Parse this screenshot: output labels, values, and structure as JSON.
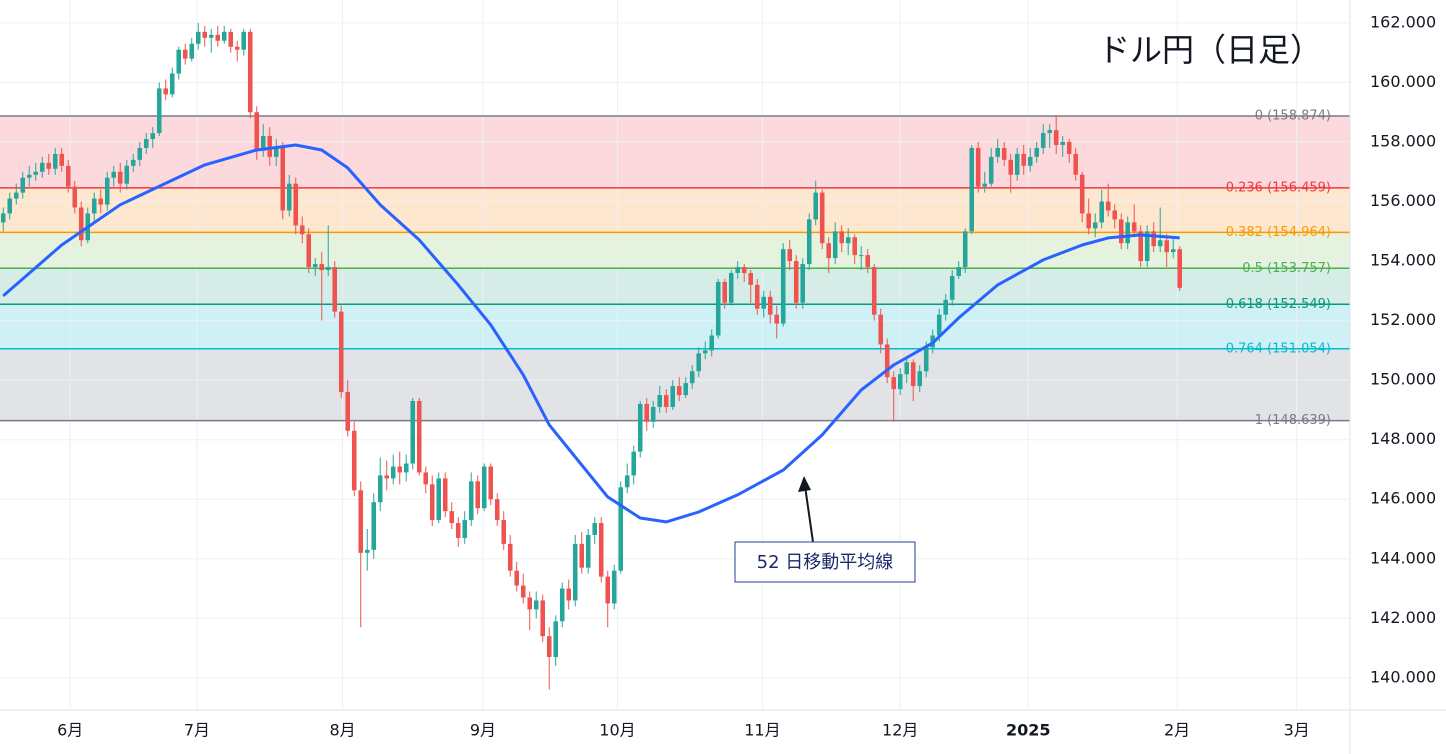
{
  "chart_data": {
    "type": "candlestick",
    "title": "ドル円（日足）",
    "up_color": "#26a69a",
    "down_color": "#ef5350",
    "grid": true,
    "xlim": [
      -0.5,
      207.2
    ],
    "ylim": [
      138.92,
      162.77
    ],
    "xticks": [
      {
        "value": 10.3,
        "label": "6月"
      },
      {
        "value": 29.8,
        "label": "7月"
      },
      {
        "value": 52.2,
        "label": "8月"
      },
      {
        "value": 73.8,
        "label": "9月"
      },
      {
        "value": 94.5,
        "label": "10月"
      },
      {
        "value": 116.8,
        "label": "11月"
      },
      {
        "value": 138,
        "label": "12月"
      },
      {
        "value": 157.7,
        "label": "2025"
      },
      {
        "value": 180.6,
        "label": "2月"
      },
      {
        "value": 199,
        "label": "3月"
      }
    ],
    "yticks": [
      {
        "value": 140,
        "label": "140.000"
      },
      {
        "value": 142,
        "label": "142.000"
      },
      {
        "value": 144,
        "label": "144.000"
      },
      {
        "value": 146,
        "label": "146.000"
      },
      {
        "value": 148,
        "label": "148.000"
      },
      {
        "value": 150,
        "label": "150.000"
      },
      {
        "value": 152,
        "label": "152.000"
      },
      {
        "value": 154,
        "label": "154.000"
      },
      {
        "value": 156,
        "label": "156.000"
      },
      {
        "value": 158,
        "label": "158.000"
      },
      {
        "value": 160,
        "label": "160.000"
      },
      {
        "value": 162,
        "label": "162.000"
      }
    ],
    "fib_levels": [
      {
        "label": "0 (158.874)",
        "price": 158.874,
        "color": "#787b86",
        "fill": "#fcd9dc"
      },
      {
        "label": "0.236 (156.459)",
        "price": 156.459,
        "color": "#f23645",
        "fill": "#fde7cf"
      },
      {
        "label": "0.382 (154.964)",
        "price": 154.964,
        "color": "#ff9800",
        "fill": "#e5f2dd"
      },
      {
        "label": "0.5 (153.757)",
        "price": 153.757,
        "color": "#4caf50",
        "fill": "#d5ede6"
      },
      {
        "label": "0.618 (152.549)",
        "price": 152.549,
        "color": "#089981",
        "fill": "#cff0f4"
      },
      {
        "label": "0.764 (151.054)",
        "price": 151.054,
        "color": "#00bcd4",
        "fill": "#e2e3e6"
      },
      {
        "label": "1 (148.639)",
        "price": 148.639,
        "color": "#787b86"
      }
    ],
    "moving_average": {
      "color": "#2962ff",
      "x": [
        0,
        9,
        18,
        31,
        39,
        45,
        49,
        53,
        58,
        64,
        70,
        75,
        80,
        84,
        89,
        93,
        98,
        102,
        107,
        113,
        120,
        126,
        132,
        137,
        143,
        147,
        153,
        160,
        166,
        170,
        175,
        181
      ],
      "values": [
        152.83,
        154.54,
        155.89,
        157.23,
        157.73,
        157.9,
        157.73,
        157.13,
        155.89,
        154.71,
        153.2,
        151.86,
        150.18,
        148.5,
        147.15,
        146.08,
        145.37,
        145.24,
        145.57,
        146.15,
        146.98,
        148.16,
        149.67,
        150.51,
        151.25,
        152.09,
        153.2,
        154.04,
        154.54,
        154.78,
        154.88,
        154.78
      ]
    },
    "annotation": {
      "text": "52 日移動平均線"
    },
    "ohlc": [
      [
        155.3,
        155.8,
        155.0,
        155.6
      ],
      [
        155.6,
        156.3,
        155.4,
        156.1
      ],
      [
        156.1,
        156.6,
        155.9,
        156.3
      ],
      [
        156.3,
        157.0,
        156.1,
        156.8
      ],
      [
        156.8,
        157.2,
        156.5,
        156.9
      ],
      [
        156.9,
        157.3,
        156.7,
        157.0
      ],
      [
        157.0,
        157.5,
        156.8,
        157.3
      ],
      [
        157.3,
        157.6,
        156.9,
        157.1
      ],
      [
        157.1,
        157.8,
        156.9,
        157.6
      ],
      [
        157.6,
        157.8,
        157.0,
        157.2
      ],
      [
        157.2,
        157.4,
        156.3,
        156.5
      ],
      [
        156.5,
        156.7,
        155.6,
        155.8
      ],
      [
        155.8,
        156.0,
        154.5,
        154.7
      ],
      [
        154.7,
        155.8,
        154.6,
        155.6
      ],
      [
        155.6,
        156.3,
        155.3,
        156.1
      ],
      [
        156.1,
        156.4,
        155.6,
        155.9
      ],
      [
        155.9,
        157.0,
        155.7,
        156.8
      ],
      [
        156.8,
        157.2,
        156.5,
        157.0
      ],
      [
        157.0,
        157.3,
        156.3,
        156.6
      ],
      [
        156.6,
        157.4,
        156.4,
        157.2
      ],
      [
        157.2,
        157.6,
        157.0,
        157.4
      ],
      [
        157.4,
        158.0,
        157.2,
        157.8
      ],
      [
        157.8,
        158.3,
        157.6,
        158.1
      ],
      [
        158.1,
        158.5,
        157.8,
        158.3
      ],
      [
        158.3,
        160.0,
        158.2,
        159.8
      ],
      [
        159.8,
        160.1,
        159.4,
        159.6
      ],
      [
        159.6,
        160.5,
        159.5,
        160.3
      ],
      [
        160.3,
        161.2,
        160.1,
        161.1
      ],
      [
        161.1,
        161.3,
        160.6,
        160.8
      ],
      [
        160.8,
        161.5,
        160.7,
        161.3
      ],
      [
        161.3,
        162.0,
        161.1,
        161.7
      ],
      [
        161.7,
        161.9,
        161.2,
        161.5
      ],
      [
        161.5,
        161.8,
        161.0,
        161.6
      ],
      [
        161.6,
        161.9,
        161.2,
        161.4
      ],
      [
        161.4,
        161.9,
        161.3,
        161.7
      ],
      [
        161.7,
        161.8,
        161.0,
        161.2
      ],
      [
        161.2,
        161.4,
        160.7,
        161.1
      ],
      [
        161.1,
        161.8,
        160.9,
        161.7
      ],
      [
        161.7,
        161.8,
        158.8,
        159.0
      ],
      [
        159.0,
        159.2,
        157.4,
        157.7
      ],
      [
        157.7,
        158.6,
        157.5,
        158.2
      ],
      [
        158.2,
        158.5,
        157.2,
        157.5
      ],
      [
        157.5,
        158.1,
        157.2,
        157.8
      ],
      [
        157.8,
        158.0,
        155.4,
        155.7
      ],
      [
        155.7,
        156.9,
        155.5,
        156.6
      ],
      [
        156.6,
        156.8,
        154.9,
        155.2
      ],
      [
        155.2,
        155.5,
        154.6,
        154.9
      ],
      [
        154.9,
        155.1,
        153.6,
        153.8
      ],
      [
        153.8,
        154.1,
        153.5,
        153.9
      ],
      [
        153.9,
        154.3,
        152.0,
        153.7
      ],
      [
        153.7,
        155.2,
        153.5,
        153.8
      ],
      [
        153.8,
        154.0,
        152.1,
        152.3
      ],
      [
        152.3,
        152.5,
        149.4,
        149.6
      ],
      [
        149.6,
        150.0,
        148.1,
        148.3
      ],
      [
        148.3,
        148.6,
        146.1,
        146.3
      ],
      [
        146.3,
        146.6,
        141.7,
        144.2
      ],
      [
        144.2,
        145.0,
        143.6,
        144.3
      ],
      [
        144.3,
        146.2,
        144.0,
        145.9
      ],
      [
        145.9,
        147.4,
        145.6,
        146.8
      ],
      [
        146.8,
        147.3,
        146.3,
        146.7
      ],
      [
        146.7,
        147.5,
        146.5,
        147.1
      ],
      [
        147.1,
        147.6,
        146.5,
        146.9
      ],
      [
        146.9,
        147.5,
        146.6,
        147.2
      ],
      [
        147.2,
        149.4,
        147.0,
        149.3
      ],
      [
        149.3,
        149.4,
        146.8,
        146.9
      ],
      [
        146.9,
        147.1,
        146.2,
        146.5
      ],
      [
        146.5,
        146.8,
        145.1,
        145.3
      ],
      [
        145.3,
        146.9,
        145.2,
        146.7
      ],
      [
        146.7,
        146.9,
        145.4,
        145.6
      ],
      [
        145.6,
        145.9,
        145.0,
        145.2
      ],
      [
        145.2,
        145.4,
        144.4,
        144.7
      ],
      [
        144.7,
        145.6,
        144.5,
        145.3
      ],
      [
        145.3,
        146.9,
        145.1,
        146.6
      ],
      [
        146.6,
        146.8,
        145.5,
        145.7
      ],
      [
        145.7,
        147.2,
        145.6,
        147.1
      ],
      [
        147.1,
        147.2,
        145.8,
        146.0
      ],
      [
        146.0,
        146.2,
        145.1,
        145.3
      ],
      [
        145.3,
        145.6,
        144.3,
        144.5
      ],
      [
        144.5,
        144.8,
        143.4,
        143.6
      ],
      [
        143.6,
        143.9,
        142.9,
        143.1
      ],
      [
        143.1,
        143.5,
        142.5,
        142.7
      ],
      [
        142.7,
        142.9,
        141.6,
        142.3
      ],
      [
        142.3,
        142.9,
        142.0,
        142.6
      ],
      [
        142.6,
        142.8,
        141.2,
        141.4
      ],
      [
        141.4,
        141.7,
        139.6,
        140.7
      ],
      [
        140.7,
        142.1,
        140.4,
        141.9
      ],
      [
        141.9,
        143.2,
        141.7,
        143.0
      ],
      [
        143.0,
        143.3,
        142.3,
        142.6
      ],
      [
        142.6,
        144.8,
        142.4,
        144.5
      ],
      [
        144.5,
        144.9,
        143.5,
        143.7
      ],
      [
        143.7,
        145.0,
        143.5,
        144.8
      ],
      [
        144.8,
        145.4,
        144.5,
        145.2
      ],
      [
        145.2,
        145.4,
        143.2,
        143.4
      ],
      [
        143.4,
        143.6,
        141.7,
        142.5
      ],
      [
        142.5,
        143.8,
        142.3,
        143.6
      ],
      [
        143.6,
        146.6,
        143.5,
        146.4
      ],
      [
        146.4,
        147.2,
        146.2,
        146.8
      ],
      [
        146.8,
        147.8,
        146.5,
        147.6
      ],
      [
        147.6,
        149.3,
        147.4,
        149.2
      ],
      [
        149.2,
        149.4,
        148.3,
        148.6
      ],
      [
        148.6,
        149.3,
        148.4,
        149.1
      ],
      [
        149.1,
        149.8,
        148.9,
        149.5
      ],
      [
        149.5,
        149.7,
        148.9,
        149.1
      ],
      [
        149.1,
        150.0,
        149.0,
        149.8
      ],
      [
        149.8,
        150.1,
        149.3,
        149.5
      ],
      [
        149.5,
        150.1,
        149.4,
        149.9
      ],
      [
        149.9,
        150.5,
        149.7,
        150.3
      ],
      [
        150.3,
        151.1,
        150.1,
        150.9
      ],
      [
        150.9,
        151.3,
        150.7,
        151.0
      ],
      [
        151.0,
        151.7,
        150.8,
        151.5
      ],
      [
        151.5,
        153.4,
        151.4,
        153.3
      ],
      [
        153.3,
        153.4,
        152.4,
        152.6
      ],
      [
        152.6,
        153.7,
        152.5,
        153.6
      ],
      [
        153.6,
        154.0,
        153.4,
        153.8
      ],
      [
        153.8,
        153.9,
        153.3,
        153.6
      ],
      [
        153.6,
        153.7,
        152.6,
        153.2
      ],
      [
        153.2,
        153.4,
        152.2,
        152.4
      ],
      [
        152.4,
        153.0,
        152.1,
        152.8
      ],
      [
        152.8,
        153.0,
        151.9,
        152.2
      ],
      [
        152.2,
        152.5,
        151.4,
        151.9
      ],
      [
        151.9,
        154.6,
        151.8,
        154.4
      ],
      [
        154.4,
        154.7,
        153.7,
        154.0
      ],
      [
        154.0,
        154.2,
        152.4,
        152.6
      ],
      [
        152.6,
        154.1,
        152.4,
        153.9
      ],
      [
        153.9,
        155.6,
        153.7,
        155.4
      ],
      [
        155.4,
        156.7,
        155.2,
        156.3
      ],
      [
        156.3,
        156.4,
        154.4,
        154.6
      ],
      [
        154.6,
        154.8,
        153.6,
        154.1
      ],
      [
        154.1,
        155.3,
        153.9,
        155.0
      ],
      [
        155.0,
        155.2,
        154.3,
        154.6
      ],
      [
        154.6,
        155.1,
        154.2,
        154.8
      ],
      [
        154.8,
        154.9,
        153.9,
        154.2
      ],
      [
        154.2,
        154.5,
        153.7,
        154.2
      ],
      [
        154.2,
        154.4,
        153.6,
        153.8
      ],
      [
        153.8,
        153.9,
        152.0,
        152.2
      ],
      [
        152.2,
        152.4,
        150.9,
        151.2
      ],
      [
        151.2,
        151.4,
        149.9,
        150.1
      ],
      [
        150.1,
        150.3,
        148.6,
        149.7
      ],
      [
        149.7,
        150.4,
        149.5,
        150.2
      ],
      [
        150.2,
        150.8,
        149.9,
        150.6
      ],
      [
        150.6,
        150.7,
        149.3,
        149.8
      ],
      [
        149.8,
        150.5,
        149.6,
        150.3
      ],
      [
        150.3,
        151.3,
        150.1,
        151.1
      ],
      [
        151.1,
        151.7,
        150.9,
        151.5
      ],
      [
        151.5,
        152.4,
        151.3,
        152.2
      ],
      [
        152.2,
        152.9,
        152.0,
        152.7
      ],
      [
        152.7,
        153.7,
        152.5,
        153.5
      ],
      [
        153.5,
        154.0,
        153.4,
        153.8
      ],
      [
        153.8,
        155.1,
        153.6,
        155.0
      ],
      [
        155.0,
        157.9,
        154.9,
        157.8
      ],
      [
        157.8,
        158.0,
        156.3,
        156.5
      ],
      [
        156.5,
        157.0,
        156.3,
        156.6
      ],
      [
        156.6,
        157.8,
        156.5,
        157.5
      ],
      [
        157.5,
        158.1,
        157.3,
        157.8
      ],
      [
        157.8,
        158.0,
        157.2,
        157.4
      ],
      [
        157.4,
        157.6,
        156.3,
        156.9
      ],
      [
        156.9,
        157.8,
        156.7,
        157.6
      ],
      [
        157.6,
        157.9,
        156.9,
        157.2
      ],
      [
        157.2,
        157.8,
        157.0,
        157.5
      ],
      [
        157.5,
        158.0,
        157.3,
        157.8
      ],
      [
        157.8,
        158.6,
        157.6,
        158.3
      ],
      [
        158.3,
        158.6,
        157.8,
        158.4
      ],
      [
        158.4,
        158.9,
        157.6,
        157.9
      ],
      [
        157.9,
        158.2,
        157.5,
        158.0
      ],
      [
        158.0,
        158.1,
        157.3,
        157.6
      ],
      [
        157.6,
        157.8,
        156.7,
        156.9
      ],
      [
        156.9,
        157.0,
        155.3,
        155.6
      ],
      [
        155.6,
        156.1,
        154.9,
        155.1
      ],
      [
        155.1,
        155.6,
        154.8,
        155.3
      ],
      [
        155.3,
        156.4,
        155.1,
        156.0
      ],
      [
        156.0,
        156.6,
        155.5,
        155.7
      ],
      [
        155.7,
        155.9,
        155.1,
        155.4
      ],
      [
        155.4,
        155.6,
        154.4,
        154.6
      ],
      [
        154.6,
        155.5,
        154.4,
        155.3
      ],
      [
        155.3,
        155.9,
        154.8,
        155.0
      ],
      [
        155.0,
        155.2,
        153.8,
        154.0
      ],
      [
        154.0,
        155.2,
        153.8,
        155.0
      ],
      [
        155.0,
        155.3,
        154.3,
        154.5
      ],
      [
        154.5,
        155.8,
        154.3,
        154.7
      ],
      [
        154.7,
        154.9,
        153.8,
        154.3
      ],
      [
        154.3,
        154.8,
        154.1,
        154.4
      ],
      [
        154.4,
        154.5,
        153.0,
        153.1
      ]
    ]
  }
}
